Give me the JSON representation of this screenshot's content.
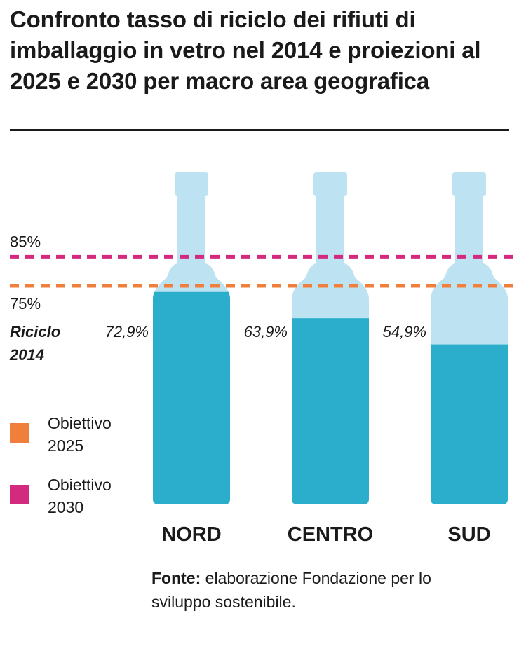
{
  "title": "Confronto tasso di riciclo dei rifiuti di imballaggio in vetro nel 2014 e proiezioni al 2025 e 2030 per macro area geografica",
  "legend": [
    {
      "label": "Obiettivo 2025",
      "color": "#f07f3c"
    },
    {
      "label": "Obiettivo 2030",
      "color": "#d42a7d"
    }
  ],
  "source_bold": "Fonte:",
  "source_text": " elaborazione Fondazione per lo sviluppo sostenibile.",
  "chart_data": {
    "type": "bar",
    "series_label": "Riciclo 2014",
    "categories": [
      "NORD",
      "CENTRO",
      "SUD"
    ],
    "values": [
      72.9,
      63.9,
      54.9
    ],
    "value_labels": [
      "72,9%",
      "63,9%",
      "54,9%"
    ],
    "targets": [
      {
        "name": "Obiettivo 2025",
        "value": 75,
        "label": "75%",
        "color": "#f07f3c"
      },
      {
        "name": "Obiettivo 2030",
        "value": 85,
        "label": "85%",
        "color": "#d42a7d"
      }
    ],
    "colors": {
      "fill": "#2aaecb",
      "empty": "#bde3f2"
    },
    "ylim": [
      0,
      100
    ]
  }
}
